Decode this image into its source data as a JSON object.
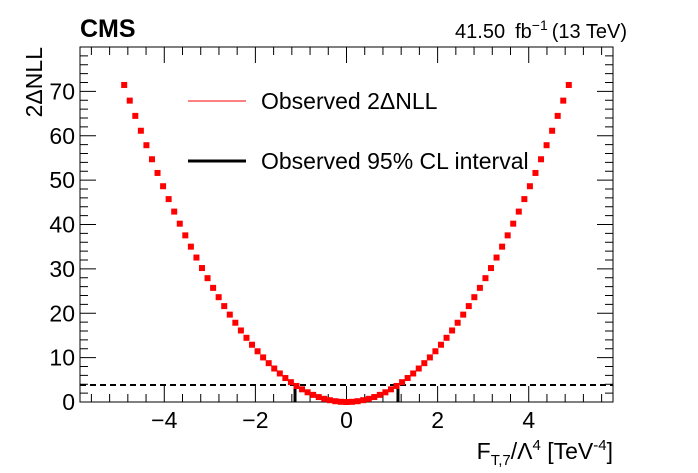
{
  "header": {
    "experiment": "CMS",
    "lumi_value": "41.50",
    "lumi_unit": "fb",
    "lumi_exp": "−1",
    "energy": "(13 TeV)"
  },
  "axes": {
    "ylabel": "2ΔNLL",
    "xlabel_parts": {
      "F": "F",
      "sub": "T,7",
      "slash": "/Λ",
      "sup4": "4",
      "bracket_open": " [TeV",
      "sup_neg4": "-4",
      "bracket_close": "]"
    }
  },
  "legend": {
    "observed_curve": "Observed 2ΔNLL",
    "observed_interval": "Observed 95% CL interval"
  },
  "colors": {
    "curve": "#ff0000",
    "interval": "#000000",
    "threshold": "#000000"
  },
  "chart_data": {
    "type": "scatter",
    "xlim": [
      -5.85,
      5.85
    ],
    "ylim": [
      0,
      80
    ],
    "x_major_ticks": [
      -4,
      -2,
      0,
      2,
      4
    ],
    "x_tick_labels": [
      "−4",
      "−2",
      "0",
      "2",
      "4"
    ],
    "y_major_ticks": [
      0,
      10,
      20,
      30,
      40,
      50,
      60,
      70
    ],
    "y_tick_labels": [
      "0",
      "10",
      "20",
      "30",
      "40",
      "50",
      "60",
      "70"
    ],
    "series": [
      {
        "name": "Observed 2ΔNLL",
        "model": "y = a * x^2",
        "a": 3.0,
        "x_min": -4.88,
        "x_max": 4.88,
        "n_points": 81
      }
    ],
    "threshold_line": {
      "y": 3.84,
      "style": "dashed"
    },
    "interval": [
      -1.13,
      1.13
    ],
    "grid": false,
    "legend_position": "top-center"
  }
}
